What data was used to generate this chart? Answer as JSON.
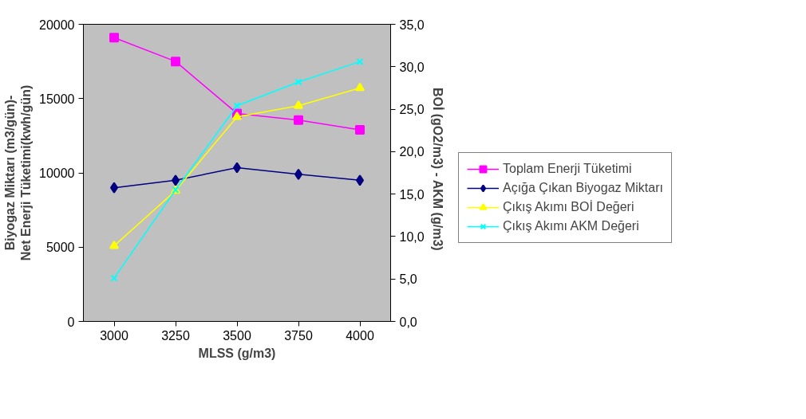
{
  "chart_data": {
    "type": "line",
    "xlabel": "MLSS (g/m3)",
    "ylabel": "Biyogaz Miktarı (m3/gün)-\nNet Enerji Tüketimi(kwh/gün)",
    "y2label": "BOİ (gO2/m3)  -  AKM (g/m3)",
    "categories": [
      "3000",
      "3250",
      "3500",
      "3750",
      "4000"
    ],
    "series": [
      {
        "name": "Toplam Enerji Tüketimi",
        "color": "#ff00ff",
        "marker": "square",
        "values": [
          19100,
          17500,
          14000,
          13550,
          12900
        ]
      },
      {
        "name": "Açığa Çıkan Biyogaz Miktarı",
        "color": "#000080",
        "marker": "diamond",
        "values": [
          9000,
          9500,
          10350,
          9900,
          9500
        ]
      },
      {
        "name": "Çıkış Akımı BOİ Değeri",
        "color": "#ffff00",
        "marker": "triangle",
        "axis": "y2",
        "values": [
          8.9,
          15.4,
          24.1,
          25.4,
          27.5
        ]
      },
      {
        "name": "Çıkış Akımı AKM Değeri",
        "color": "#00ffff",
        "marker": "cross",
        "axis": "y2",
        "values": [
          5.1,
          15.5,
          25.4,
          28.2,
          30.6
        ]
      }
    ],
    "ylim": [
      0,
      20000
    ],
    "yticks": [
      0,
      5000,
      10000,
      15000,
      20000
    ],
    "y2lim": [
      0,
      35
    ],
    "y2ticks": [
      {
        "value": 0,
        "label": "0,0"
      },
      {
        "value": 5,
        "label": "5,0"
      },
      {
        "value": 10,
        "label": "10,0"
      },
      {
        "value": 15,
        "label": "15,0"
      },
      {
        "value": 20,
        "label": "20,0"
      },
      {
        "value": 25,
        "label": "25,0"
      },
      {
        "value": 30,
        "label": "30,0"
      },
      {
        "value": 35,
        "label": "35,0"
      }
    ],
    "grid": false,
    "legend": "right"
  }
}
